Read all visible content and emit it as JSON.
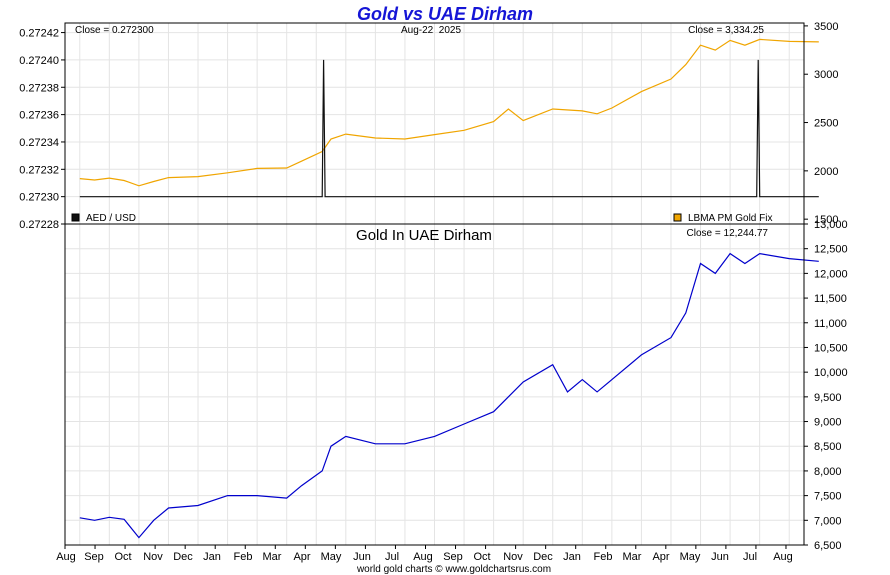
{
  "title": "Gold vs UAE Dirham",
  "footer": "world gold charts © www.goldchartsrus.com",
  "colors": {
    "title": "#1515d6",
    "gold": "#f0a500",
    "aed": "#111111",
    "dirham": "#0000cc",
    "grid": "#e4e4e4",
    "frame": "#000000"
  },
  "chart_data": [
    {
      "type": "line",
      "panel": "top",
      "date_label": "Aug-22  2025",
      "y_left": {
        "ticks": [
          "0.27228",
          "0.27230",
          "0.27232",
          "0.27234",
          "0.27236",
          "0.27238",
          "0.27240",
          "0.27242"
        ],
        "range": [
          0.27228,
          0.272427
        ]
      },
      "y_right": {
        "ticks": [
          "1500",
          "2000",
          "2500",
          "3000",
          "3500"
        ],
        "range": [
          1450,
          3530
        ]
      },
      "grid": true,
      "series": [
        {
          "name": "AED / USD",
          "axis": "left",
          "close_label": "Close = 0.272300",
          "points": [
            [
              0,
              0.2723
            ],
            [
              8.2,
              0.2723
            ],
            [
              8.25,
              0.2724
            ],
            [
              8.3,
              0.2723
            ],
            [
              22.9,
              0.2723
            ],
            [
              22.95,
              0.2724
            ],
            [
              23.0,
              0.2723
            ],
            [
              25.0,
              0.2723
            ]
          ]
        },
        {
          "name": "LBMA PM Gold Fix",
          "axis": "right",
          "close_label": "Close = 3,334.25",
          "points": [
            [
              0,
              1920
            ],
            [
              0.5,
              1905
            ],
            [
              1,
              1925
            ],
            [
              1.5,
              1900
            ],
            [
              2,
              1845
            ],
            [
              2.5,
              1890
            ],
            [
              3,
              1930
            ],
            [
              4,
              1940
            ],
            [
              5,
              1980
            ],
            [
              6,
              2025
            ],
            [
              7,
              2030
            ],
            [
              7.5,
              2100
            ],
            [
              8.2,
              2200
            ],
            [
              8.5,
              2330
            ],
            [
              9,
              2380
            ],
            [
              10,
              2340
            ],
            [
              11,
              2330
            ],
            [
              12,
              2375
            ],
            [
              13,
              2420
            ],
            [
              14,
              2510
            ],
            [
              14.5,
              2640
            ],
            [
              15,
              2520
            ],
            [
              16,
              2640
            ],
            [
              17,
              2620
            ],
            [
              17.5,
              2590
            ],
            [
              18,
              2650
            ],
            [
              19,
              2820
            ],
            [
              20,
              2950
            ],
            [
              20.5,
              3100
            ],
            [
              21,
              3300
            ],
            [
              21.5,
              3250
            ],
            [
              22,
              3350
            ],
            [
              22.5,
              3300
            ],
            [
              23,
              3360
            ],
            [
              24,
              3340
            ],
            [
              25,
              3334
            ]
          ]
        }
      ],
      "legend": [
        "AED / USD",
        "LBMA PM Gold Fix"
      ]
    },
    {
      "type": "line",
      "panel": "bottom",
      "title": "Gold In UAE Dirham",
      "close_label": "Close = 12,244.77",
      "y": {
        "ticks": [
          "6,500",
          "7,000",
          "7,500",
          "8,000",
          "8,500",
          "9,000",
          "9,500",
          "10,000",
          "10,500",
          "11,000",
          "11,500",
          "12,000",
          "12,500",
          "13,000"
        ],
        "range": [
          6500,
          13000
        ]
      },
      "x": {
        "ticks": [
          "Aug",
          "Sep",
          "Oct",
          "Nov",
          "Dec",
          "Jan",
          "Feb",
          "Mar",
          "Apr",
          "May",
          "Jun",
          "Jul",
          "Aug"
        ]
      },
      "grid": true,
      "series": [
        {
          "name": "Gold In UAE Dirham",
          "points": [
            [
              0,
              7050
            ],
            [
              0.5,
              7000
            ],
            [
              1,
              7060
            ],
            [
              1.5,
              7020
            ],
            [
              2,
              6650
            ],
            [
              2.5,
              7000
            ],
            [
              3,
              7250
            ],
            [
              4,
              7300
            ],
            [
              5,
              7500
            ],
            [
              6,
              7500
            ],
            [
              7,
              7450
            ],
            [
              7.5,
              7700
            ],
            [
              8.2,
              8000
            ],
            [
              8.5,
              8500
            ],
            [
              9,
              8700
            ],
            [
              10,
              8550
            ],
            [
              11,
              8550
            ],
            [
              12,
              8700
            ],
            [
              13,
              8950
            ],
            [
              14,
              9200
            ],
            [
              14.5,
              9500
            ],
            [
              15,
              9800
            ],
            [
              16,
              10150
            ],
            [
              16.5,
              9600
            ],
            [
              17,
              9850
            ],
            [
              17.5,
              9600
            ],
            [
              18,
              9850
            ],
            [
              19,
              10350
            ],
            [
              20,
              10700
            ],
            [
              20.5,
              11200
            ],
            [
              21,
              12200
            ],
            [
              21.5,
              12000
            ],
            [
              22,
              12400
            ],
            [
              22.5,
              12200
            ],
            [
              23,
              12400
            ],
            [
              24,
              12300
            ],
            [
              25,
              12245
            ]
          ]
        }
      ]
    }
  ]
}
